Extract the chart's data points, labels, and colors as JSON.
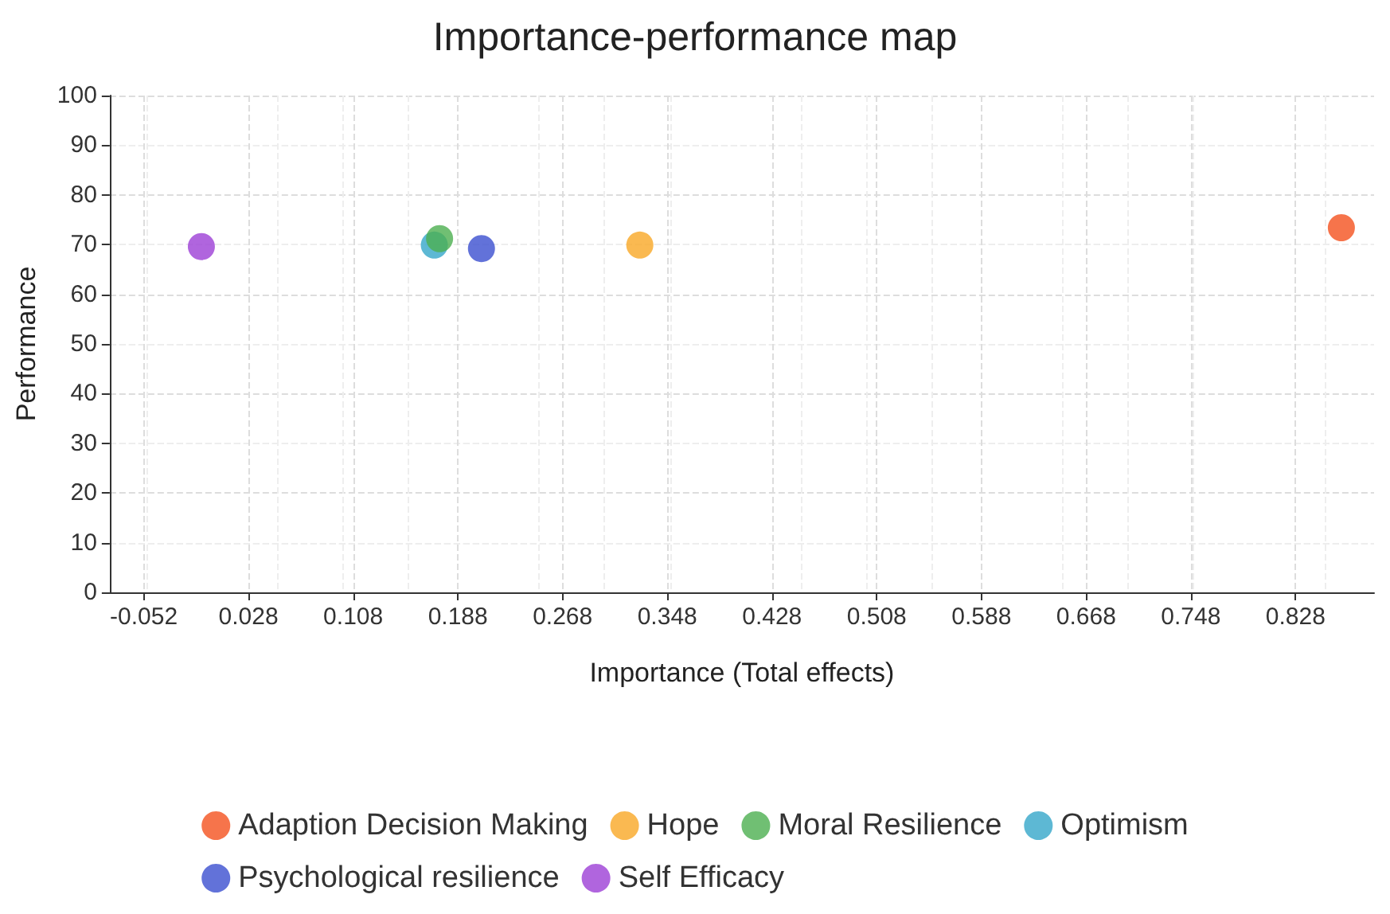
{
  "chart_data": {
    "type": "scatter",
    "title": "Importance-performance map",
    "xlabel": "Importance (Total effects)",
    "ylabel": "Performance",
    "xlim": [
      -0.078,
      0.888
    ],
    "xticks": [
      -0.052,
      0.028,
      0.108,
      0.188,
      0.268,
      0.348,
      0.428,
      0.508,
      0.588,
      0.668,
      0.748,
      0.828
    ],
    "ylim": [
      0,
      100
    ],
    "yticks": [
      0,
      10,
      20,
      30,
      40,
      50,
      60,
      70,
      80,
      90,
      100
    ],
    "grid": true,
    "legend": "bottom",
    "marker": "circle",
    "series": [
      {
        "name": "Adaption Decision Making",
        "color": "#f4511e",
        "x": [
          0.863
        ],
        "values": [
          73.4
        ]
      },
      {
        "name": "Hope",
        "color": "#f9a825",
        "x": [
          0.327
        ],
        "values": [
          69.9
        ]
      },
      {
        "name": "Moral Resilience",
        "color": "#4caf50",
        "x": [
          0.174
        ],
        "values": [
          71.2
        ]
      },
      {
        "name": "Optimism",
        "color": "#35a6c9",
        "x": [
          0.17
        ],
        "values": [
          69.9
        ]
      },
      {
        "name": "Psychological resilience",
        "color": "#3b4fcf",
        "x": [
          0.206
        ],
        "values": [
          69.2
        ]
      },
      {
        "name": "Self Efficacy",
        "color": "#9c3ed6",
        "x": [
          -0.008
        ],
        "values": [
          69.6
        ]
      }
    ]
  }
}
